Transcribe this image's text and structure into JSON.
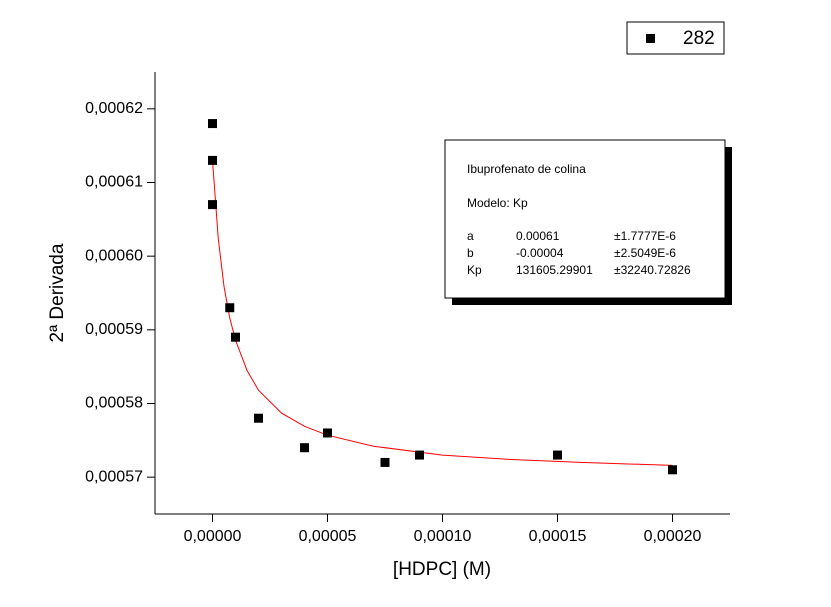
{
  "chart_data": {
    "type": "scatter",
    "x_label": "[HDPC] (M)",
    "y_label": "2ª Derivada",
    "xlim": [
      -2.5e-05,
      0.000225
    ],
    "ylim": [
      0.000565,
      0.000625
    ],
    "xticks": [
      {
        "value": 0,
        "label": "0,00000"
      },
      {
        "value": 5e-05,
        "label": "0,00005"
      },
      {
        "value": 0.0001,
        "label": "0,00010"
      },
      {
        "value": 0.00015,
        "label": "0,00015"
      },
      {
        "value": 0.0002,
        "label": "0,00020"
      }
    ],
    "yticks": [
      {
        "value": 0.00057,
        "label": "0,00057"
      },
      {
        "value": 0.00058,
        "label": "0,00058"
      },
      {
        "value": 0.00059,
        "label": "0,00059"
      },
      {
        "value": 0.0006,
        "label": "0,00060"
      },
      {
        "value": 0.00061,
        "label": "0,00061"
      },
      {
        "value": 0.00062,
        "label": "0,00062"
      }
    ],
    "legend": "top-right",
    "series": [
      {
        "name": "282",
        "color": "#000000",
        "x": [
          0,
          0,
          0,
          7.5e-06,
          1e-05,
          2e-05,
          4e-05,
          5e-05,
          7.5e-05,
          9e-05,
          0.00015,
          0.0002
        ],
        "values": [
          0.000618,
          0.000613,
          0.000607,
          0.000593,
          0.000589,
          0.000578,
          0.000574,
          0.000576,
          0.000572,
          0.000573,
          0.000573,
          0.000571
        ]
      }
    ],
    "fit_curve": {
      "color": "#ff0000",
      "x": [
        0,
        2.5e-06,
        5e-06,
        7.5e-06,
        1e-05,
        1.5e-05,
        2e-05,
        3e-05,
        4e-05,
        5e-05,
        7e-05,
        0.0001,
        0.00013,
        0.00016,
        0.0002
      ],
      "values": [
        0.000613,
        0.0006024,
        0.0005959,
        0.0005916,
        0.0005886,
        0.0005845,
        0.0005818,
        0.0005787,
        0.0005769,
        0.0005757,
        0.0005742,
        0.000573,
        0.0005724,
        0.000572,
        0.0005716
      ]
    },
    "annotation": {
      "title": "Ibuprofenato de colina",
      "model": "Modelo: Kp",
      "rows": [
        [
          "a",
          "0.00061",
          "±1.7777E-6"
        ],
        [
          "b",
          "-0.00004",
          "±2.5049E-6"
        ],
        [
          "Kp",
          "131605.29901",
          "±32240.72826"
        ]
      ]
    }
  }
}
